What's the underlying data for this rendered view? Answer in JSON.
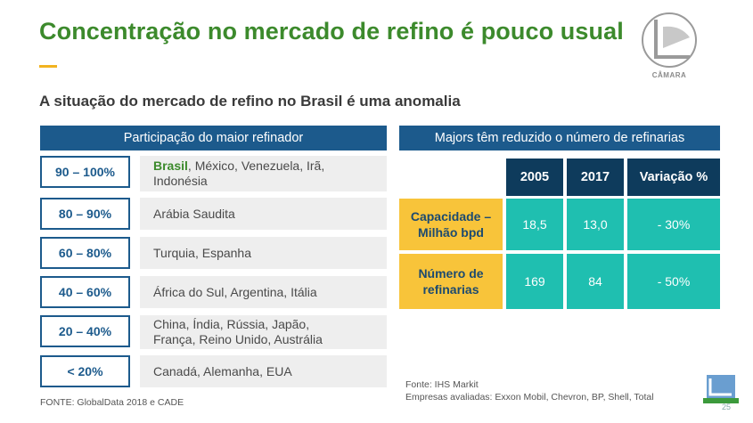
{
  "slide": {
    "title": "Concentração no mercado de refino é pouco usual",
    "subtitle": "A situação do mercado de refino no Brasil é uma anomalia",
    "logo_text": "CÂMARA",
    "page_number": "25"
  },
  "left_panel": {
    "header": "Participação do maior refinador",
    "rows": [
      {
        "range": "90 – 100%",
        "highlight": "Brasil",
        "countries": ", México, Venezuela, Irã, Indonésia"
      },
      {
        "range": "80 – 90%",
        "highlight": "",
        "countries": "Arábia Saudita"
      },
      {
        "range": "60 – 80%",
        "highlight": "",
        "countries": "Turquia, Espanha"
      },
      {
        "range": "40 – 60%",
        "highlight": "",
        "countries": "África do Sul, Argentina, Itália"
      },
      {
        "range": "20 – 40%",
        "highlight": "",
        "countries": "China, Índia, Rússia, Japão, França, Reino Unido, Austrália"
      },
      {
        "range": "< 20%",
        "highlight": "",
        "countries": "Canadá, Alemanha, EUA"
      }
    ],
    "source": "FONTE: GlobalData 2018 e CADE"
  },
  "right_panel": {
    "header": "Majors têm reduzido o número de refinarias",
    "columns": [
      "2005",
      "2017",
      "Variação %"
    ],
    "rows": [
      {
        "label": "Capacidade – Milhão bpd",
        "values": [
          "18,5",
          "13,0",
          "- 30%"
        ]
      },
      {
        "label": "Número de refinarias",
        "values": [
          "169",
          "84",
          "- 50%"
        ]
      }
    ],
    "source_line1": "Fonte: IHS Markit",
    "source_line2": "Empresas avaliadas: Exxon Mobil, Chevron, BP, Shell, Total"
  },
  "colors": {
    "title_green": "#3c8a2c",
    "navy": "#1c5a8c",
    "dark_navy": "#0e3b5c",
    "teal": "#1fbfb0",
    "yellow": "#f8c43a"
  }
}
